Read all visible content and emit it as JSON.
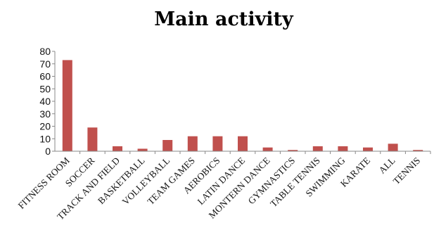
{
  "chart_data": {
    "type": "bar",
    "title": "Main activity",
    "xlabel": "",
    "ylabel": "",
    "ylim": [
      0,
      80
    ],
    "yticks": [
      0,
      10,
      20,
      30,
      40,
      50,
      60,
      70,
      80
    ],
    "grid": false,
    "legend": "none",
    "categories": [
      "FITNESS ROOM",
      "SOCCER",
      "TRACK AND FIELD",
      "BASKETBALL",
      "VOLLEYBALL",
      "TEAM GAMES",
      "AEROBICS",
      "LATIN DANCE",
      "MONTERN DANCE",
      "GYMNASTICS",
      "TABLE TENNIS",
      "SWIMMING",
      "KARATE",
      "ALL",
      "TENNIS"
    ],
    "values": [
      73,
      19,
      4,
      2,
      9,
      12,
      12,
      12,
      3,
      1,
      4,
      4,
      3,
      6,
      1
    ],
    "bar_color": "#c0504d",
    "axis_color": "#888888"
  }
}
